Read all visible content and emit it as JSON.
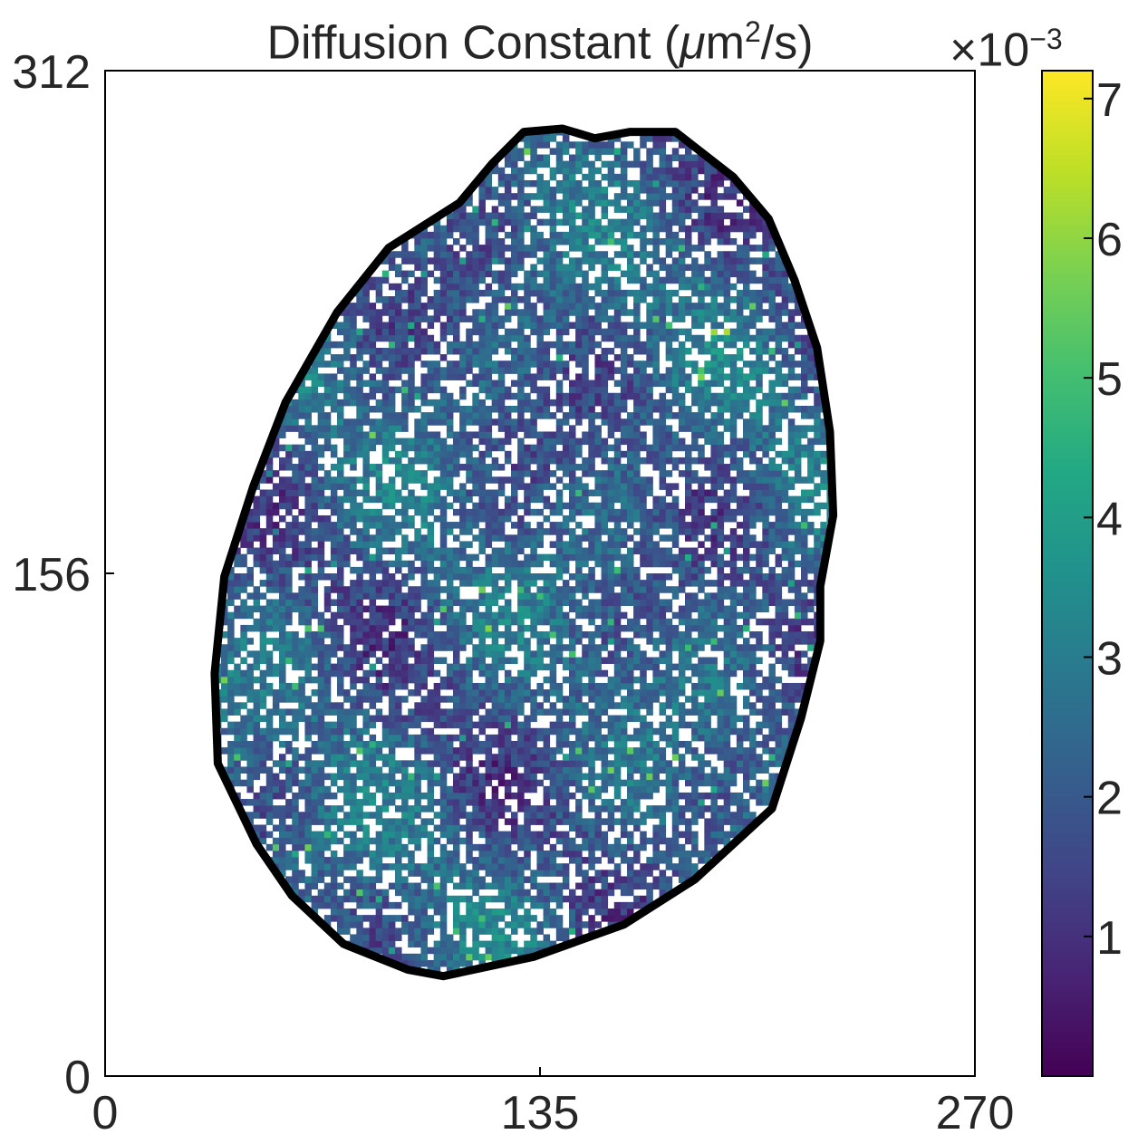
{
  "chart_data": {
    "type": "heatmap",
    "title": {
      "prefix": "Diffusion Constant (",
      "mu": "μ",
      "unit": "m",
      "exponent": "2",
      "suffix": "/s)"
    },
    "xlim": [
      0,
      270
    ],
    "ylim": [
      0,
      312
    ],
    "x_ticks": [
      "0",
      "135",
      "270"
    ],
    "y_ticks": [
      "0",
      "156",
      "312"
    ],
    "colormap": "viridis",
    "colorbar": {
      "range": [
        0,
        7.2
      ],
      "multiplier_prefix": "×10",
      "multiplier_exponent": "−3",
      "ticks": [
        "1",
        "2",
        "3",
        "4",
        "5",
        "6",
        "7"
      ]
    },
    "region_outline": [
      [
        130,
        293
      ],
      [
        142,
        294
      ],
      [
        152,
        291
      ],
      [
        163,
        293
      ],
      [
        177,
        293
      ],
      [
        195,
        279
      ],
      [
        206,
        266
      ],
      [
        214,
        247
      ],
      [
        221,
        226
      ],
      [
        225,
        200
      ],
      [
        226,
        174
      ],
      [
        222,
        152
      ],
      [
        222,
        135
      ],
      [
        216,
        111
      ],
      [
        207,
        83
      ],
      [
        183,
        61
      ],
      [
        161,
        47
      ],
      [
        133,
        37
      ],
      [
        105,
        31
      ],
      [
        94,
        33
      ],
      [
        74,
        41
      ],
      [
        58,
        56
      ],
      [
        47,
        72
      ],
      [
        35,
        97
      ],
      [
        34,
        125
      ],
      [
        37,
        155
      ],
      [
        46,
        183
      ],
      [
        56,
        209
      ],
      [
        72,
        237
      ],
      [
        88,
        257
      ],
      [
        110,
        271
      ],
      [
        120,
        283
      ]
    ],
    "outline_color": "#000000",
    "masked_color": "#ffffff"
  }
}
